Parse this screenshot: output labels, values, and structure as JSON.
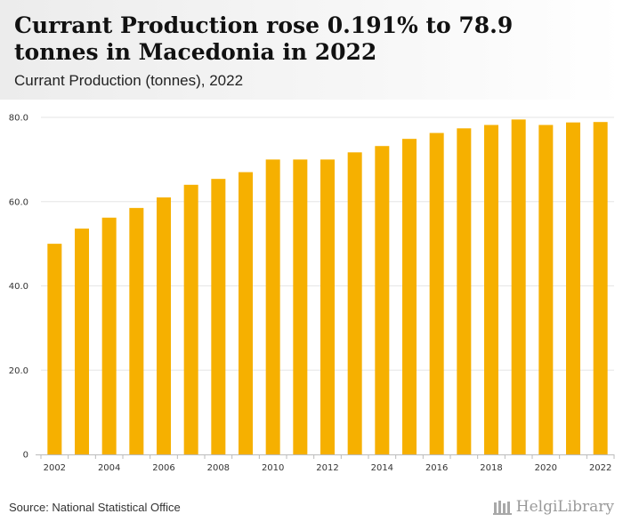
{
  "header": {
    "title": "Currant Production rose 0.191% to 78.9 tonnes in Macedonia in 2022",
    "subtitle": "Currant Production (tonnes), 2022"
  },
  "footer": {
    "source": "Source: National Statistical Office",
    "logo_text": "HelgiLibrary"
  },
  "colors": {
    "bar": "#f6b000",
    "grid": "#e6e6e6",
    "axis": "#bbbbbb"
  },
  "chart_data": {
    "type": "bar",
    "categories": [
      "2002",
      "2003",
      "2004",
      "2005",
      "2006",
      "2007",
      "2008",
      "2009",
      "2010",
      "2011",
      "2012",
      "2013",
      "2014",
      "2015",
      "2016",
      "2017",
      "2018",
      "2019",
      "2020",
      "2021",
      "2022"
    ],
    "values": [
      50.0,
      53.6,
      56.2,
      58.5,
      61.0,
      64.0,
      65.4,
      67.0,
      70.0,
      70.0,
      70.0,
      71.7,
      73.2,
      74.9,
      76.3,
      77.4,
      78.2,
      79.5,
      78.2,
      78.8,
      78.9
    ],
    "x_tick_labels": [
      "2002",
      "2004",
      "2006",
      "2008",
      "2010",
      "2012",
      "2014",
      "2016",
      "2018",
      "2020",
      "2022"
    ],
    "y_ticks": [
      "0",
      "20.0",
      "40.0",
      "60.0",
      "80.0"
    ],
    "ylim": [
      0,
      80
    ],
    "grid": true
  }
}
